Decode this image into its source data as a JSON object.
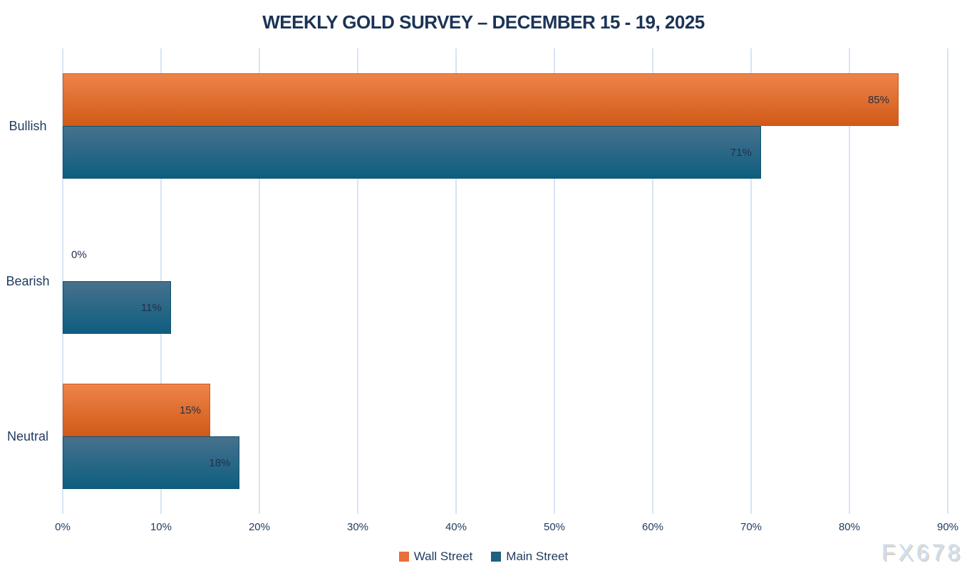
{
  "watermark": "FX678",
  "colors": {
    "title_text": "#1b3356",
    "axis_text": "#1f3a5f",
    "gridline": "#d7e4f4",
    "value_label_text": "#22304a",
    "watermark_text": "#cbdff2"
  },
  "chart_data": {
    "type": "bar",
    "orientation": "horizontal",
    "title": "WEEKLY GOLD SURVEY – DECEMBER 15 - 19, 2025",
    "categories": [
      "Bullish",
      "Bearish",
      "Neutral"
    ],
    "series": [
      {
        "name": "Wall Street",
        "values": [
          85,
          0,
          15
        ],
        "value_labels": [
          "85%",
          "0%",
          "15%"
        ],
        "gradient_top": "#ee8449",
        "gradient_bottom": "#d15a18",
        "border_color": "#ca581c",
        "legend_color": "#e8703a"
      },
      {
        "name": "Main Street",
        "values": [
          71,
          11,
          18
        ],
        "value_labels": [
          "71%",
          "11%",
          "18%"
        ],
        "gradient_top": "#47718d",
        "gradient_bottom": "#0e5e7f",
        "border_color": "#0c536f",
        "legend_color": "#20617f"
      }
    ],
    "x_ticks": [
      "0%",
      "10%",
      "20%",
      "30%",
      "40%",
      "50%",
      "60%",
      "70%",
      "80%",
      "90%"
    ],
    "xlim": [
      0,
      90
    ],
    "xlabel": "",
    "ylabel": "",
    "grid": "vertical",
    "legend_position": "bottom"
  }
}
